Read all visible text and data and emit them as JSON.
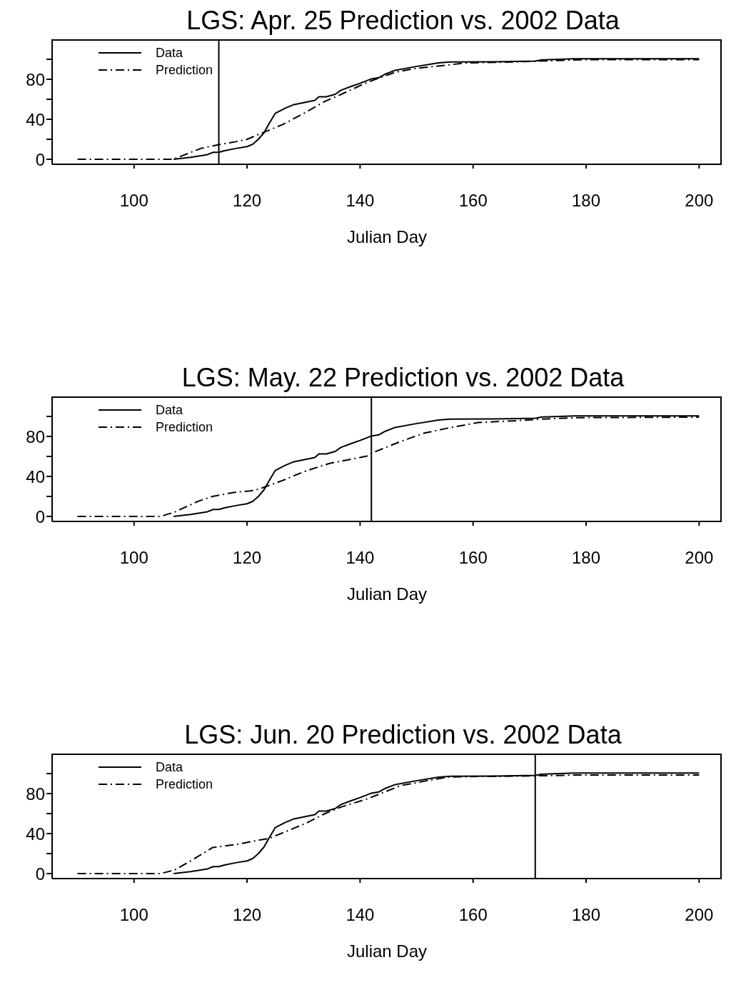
{
  "chart_data": [
    {
      "type": "line",
      "title": "LGS: Apr. 25 Prediction vs. 2002 Data",
      "xlabel": "Julian Day",
      "xlim": [
        85.5,
        204
      ],
      "xticks": [
        100,
        120,
        140,
        160,
        180,
        200
      ],
      "ylim": [
        -5,
        120
      ],
      "yticks": [
        0,
        {
          "value": 20,
          "label": null
        },
        40,
        {
          "value": 60,
          "label": null
        },
        80,
        {
          "value": 100,
          "label": null
        }
      ],
      "legend": "top left",
      "ref_lines": [
        {
          "axis": "x",
          "value": 115,
          "color": "#000000"
        }
      ],
      "series": [
        {
          "name": "Data",
          "color": "#000000",
          "line_style": "solid",
          "x": [
            107,
            110,
            112,
            113,
            114,
            115,
            116,
            118,
            120,
            121,
            122,
            123,
            123.8,
            125,
            126.7,
            128.3,
            130.3,
            132,
            132.7,
            134,
            135.6,
            136.6,
            138.5,
            140,
            142,
            143.3,
            144.3,
            146.2,
            149.7,
            153.9,
            156,
            164,
            171,
            172.2,
            178,
            200
          ],
          "values": [
            0,
            2,
            3.7,
            4.7,
            7,
            7,
            8.6,
            10.8,
            12.7,
            15,
            20,
            26.6,
            34.7,
            46,
            51,
            54.7,
            57,
            59,
            62.5,
            62.5,
            65,
            69,
            73,
            76,
            80.4,
            81.6,
            84.8,
            89,
            92.6,
            96.5,
            97.4,
            97.5,
            98.2,
            99.4,
            100.6,
            100.6
          ]
        },
        {
          "name": "Prediction",
          "color": "#000000",
          "line_style": "dashed",
          "x": [
            90,
            107,
            107.6,
            111.8,
            114.4,
            118,
            120,
            122.1,
            126.3,
            130.4,
            133.8,
            136.3,
            141.3,
            146.2,
            150,
            155,
            158.8,
            168,
            176.5,
            180.7,
            200
          ],
          "values": [
            0,
            0,
            1.5,
            10.8,
            14,
            17.6,
            20,
            25,
            34.7,
            47,
            58,
            64,
            77,
            87,
            91,
            94,
            96.3,
            97.5,
            99,
            99.7,
            99.7
          ]
        }
      ]
    },
    {
      "type": "line",
      "title": "LGS: May. 22 Prediction vs. 2002 Data",
      "xlabel": "Julian Day",
      "xlim": [
        85.5,
        204
      ],
      "xticks": [
        100,
        120,
        140,
        160,
        180,
        200
      ],
      "ylim": [
        -5,
        120
      ],
      "yticks": [
        0,
        {
          "value": 20,
          "label": null
        },
        40,
        {
          "value": 60,
          "label": null
        },
        80,
        {
          "value": 100,
          "label": null
        }
      ],
      "legend": "top left",
      "ref_lines": [
        {
          "axis": "x",
          "value": 142,
          "color": "#000000"
        }
      ],
      "series": [
        {
          "name": "Data",
          "color": "#000000",
          "line_style": "solid",
          "x": [
            107,
            110,
            112,
            113,
            114,
            115,
            116,
            118,
            120,
            121,
            122,
            123,
            123.8,
            125,
            126.7,
            128.3,
            130.3,
            132,
            132.7,
            134,
            135.6,
            136.6,
            138.5,
            140,
            142,
            143.3,
            144.3,
            146.2,
            149.7,
            153.9,
            156,
            164,
            171,
            172.2,
            178,
            200
          ],
          "values": [
            0,
            2,
            3.7,
            4.7,
            7,
            7,
            8.6,
            10.8,
            12.7,
            15,
            20,
            26.6,
            34.7,
            46,
            51,
            54.7,
            57,
            59,
            62.5,
            62.5,
            65,
            69,
            73,
            76,
            80.4,
            81.6,
            84.8,
            89,
            92.6,
            96.5,
            97.4,
            97.5,
            98.2,
            99.4,
            100.6,
            100.6
          ]
        },
        {
          "name": "Prediction",
          "color": "#000000",
          "line_style": "dashed",
          "x": [
            90,
            104.7,
            107.2,
            111.4,
            113.9,
            118,
            120.6,
            122.2,
            126.3,
            130.5,
            134.6,
            137.9,
            141.2,
            142,
            147.2,
            151.4,
            155.5,
            160.9,
            167.1,
            172.1,
            178.4,
            200
          ],
          "values": [
            0,
            0,
            4.4,
            15.3,
            20,
            24.3,
            25.5,
            27.5,
            36,
            45.7,
            53,
            56.6,
            60.3,
            63.2,
            75,
            83.4,
            88.3,
            93.9,
            95.6,
            97.3,
            98.8,
            99.3
          ]
        }
      ]
    },
    {
      "type": "line",
      "title": "LGS: Jun. 20 Prediction vs. 2002 Data",
      "xlabel": "Julian Day",
      "xlim": [
        85.5,
        204
      ],
      "xticks": [
        100,
        120,
        140,
        160,
        180,
        200
      ],
      "ylim": [
        -5,
        120
      ],
      "yticks": [
        0,
        {
          "value": 20,
          "label": null
        },
        40,
        {
          "value": 60,
          "label": null
        },
        80,
        {
          "value": 100,
          "label": null
        }
      ],
      "legend": "top left",
      "ref_lines": [
        {
          "axis": "x",
          "value": 171,
          "color": "#000000"
        }
      ],
      "series": [
        {
          "name": "Data",
          "color": "#000000",
          "line_style": "solid",
          "x": [
            107,
            110,
            112,
            113,
            114,
            115,
            116,
            118,
            120,
            121,
            122,
            123,
            123.8,
            125,
            126.7,
            128.3,
            130.3,
            132,
            132.7,
            134,
            135.6,
            136.6,
            138.5,
            140,
            142,
            143.3,
            144.3,
            146.2,
            149.7,
            153.9,
            156,
            164,
            171,
            172.2,
            178,
            200
          ],
          "values": [
            0,
            2,
            3.7,
            4.7,
            7,
            7,
            8.6,
            10.8,
            12.7,
            15,
            20,
            26.6,
            34.7,
            46,
            51,
            54.7,
            57,
            59,
            62.5,
            62.5,
            65,
            69,
            73,
            76,
            80.4,
            81.6,
            84.8,
            89,
            92.6,
            96.5,
            97.4,
            97.5,
            98.2,
            99.4,
            100.6,
            100.6
          ]
        },
        {
          "name": "Prediction",
          "color": "#000000",
          "line_style": "dashed",
          "x": [
            90,
            104.7,
            107.2,
            109.7,
            113.9,
            118,
            122.2,
            123.8,
            126.3,
            130.5,
            133.8,
            136.7,
            141.3,
            147.2,
            151.4,
            155.5,
            159.7,
            171,
            178,
            200
          ],
          "values": [
            0,
            0,
            3.6,
            11.6,
            26,
            29,
            33.5,
            35,
            40.7,
            50.5,
            60,
            66.7,
            74.7,
            88,
            92.4,
            96.5,
            97,
            97.7,
            98.5,
            98.5
          ]
        }
      ]
    }
  ]
}
